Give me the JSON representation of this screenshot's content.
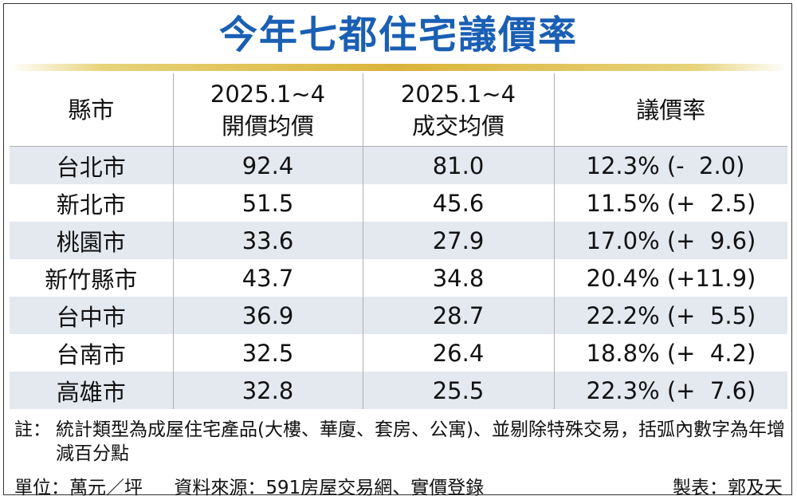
{
  "title": "今年七都住宅議價率",
  "table": {
    "headers": [
      [
        "縣市"
      ],
      [
        "2025.1~4",
        "開價均價"
      ],
      [
        "2025.1~4",
        "成交均價"
      ],
      [
        "議價率"
      ]
    ],
    "rows": [
      {
        "city": "台北市",
        "ask": "92.4",
        "deal": "81.0",
        "rate": "12.3% (-  2.0)"
      },
      {
        "city": "新北市",
        "ask": "51.5",
        "deal": "45.6",
        "rate": "11.5% (+  2.5)"
      },
      {
        "city": "桃園市",
        "ask": "33.6",
        "deal": "27.9",
        "rate": "17.0% (+  9.6)"
      },
      {
        "city": "新竹縣市",
        "ask": "43.7",
        "deal": "34.8",
        "rate": "20.4% (+11.9)"
      },
      {
        "city": "台中市",
        "ask": "36.9",
        "deal": "28.7",
        "rate": "22.2% (+  5.5)"
      },
      {
        "city": "台南市",
        "ask": "32.5",
        "deal": "26.4",
        "rate": "18.8% (+  4.2)"
      },
      {
        "city": "高雄市",
        "ask": "32.8",
        "deal": "25.5",
        "rate": "22.3% (+  7.6)"
      }
    ]
  },
  "note": {
    "label": "註：",
    "text": "統計類型為成屋住宅產品(大樓、華廈、套房、公寓)、並剔除特殊交易，括弧內數字為年增減百分點"
  },
  "footer": {
    "unit": "單位：萬元／坪",
    "source": "資料來源：591房屋交易網、實價登錄",
    "maker": "製表：郭及天"
  }
}
